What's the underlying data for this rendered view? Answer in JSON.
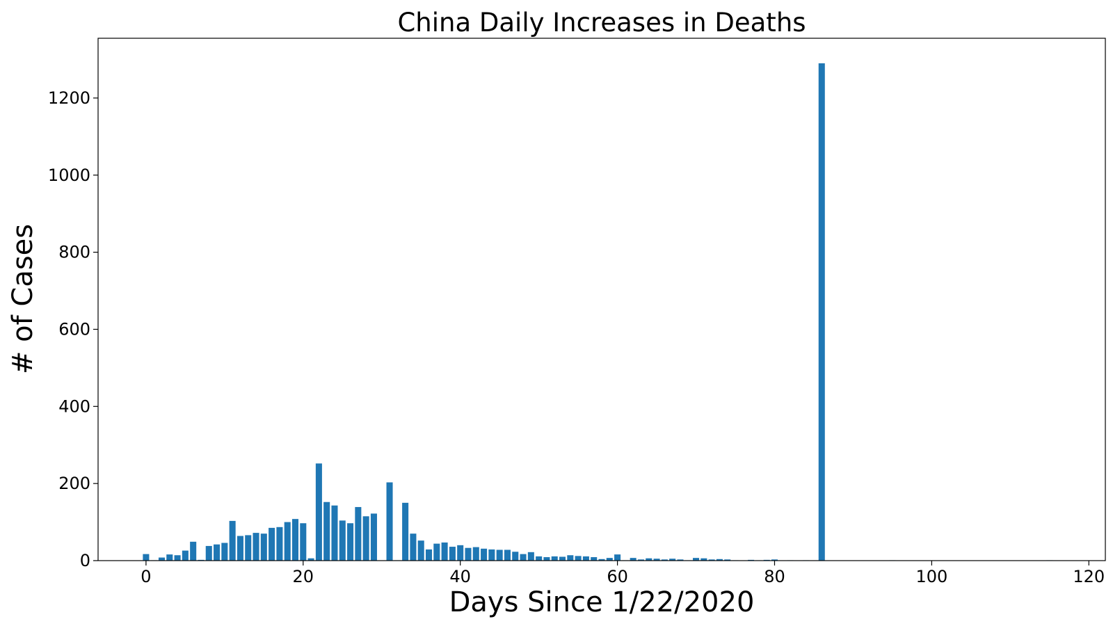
{
  "chart_data": {
    "type": "bar",
    "title": "China Daily Increases in Deaths",
    "xlabel": "Days Since 1/22/2020",
    "ylabel": "# of Cases",
    "xlim": [
      -6.1,
      122.1
    ],
    "ylim": [
      0,
      1355
    ],
    "xticks": [
      0,
      20,
      40,
      60,
      80,
      100,
      120
    ],
    "yticks": [
      0,
      200,
      400,
      600,
      800,
      1000,
      1200
    ],
    "grid": false,
    "legend": "none",
    "bar_color": "#1f77b4",
    "x": [
      0,
      1,
      2,
      3,
      4,
      5,
      6,
      7,
      8,
      9,
      10,
      11,
      12,
      13,
      14,
      15,
      16,
      17,
      18,
      19,
      20,
      21,
      22,
      23,
      24,
      25,
      26,
      27,
      28,
      29,
      30,
      31,
      32,
      33,
      34,
      35,
      36,
      37,
      38,
      39,
      40,
      41,
      42,
      43,
      44,
      45,
      46,
      47,
      48,
      49,
      50,
      51,
      52,
      53,
      54,
      55,
      56,
      57,
      58,
      59,
      60,
      61,
      62,
      63,
      64,
      65,
      66,
      67,
      68,
      69,
      70,
      71,
      72,
      73,
      74,
      75,
      76,
      77,
      78,
      79,
      80,
      81,
      82,
      83,
      84,
      85,
      86,
      87,
      88,
      89,
      90,
      91,
      92,
      93,
      94,
      95,
      96,
      97,
      98,
      99,
      100,
      101,
      102,
      103,
      104,
      105,
      106,
      107,
      108,
      109,
      110,
      111,
      112,
      113,
      114,
      115,
      116,
      117,
      118,
      119
    ],
    "values": [
      17,
      1,
      8,
      16,
      14,
      26,
      49,
      2,
      38,
      42,
      46,
      103,
      64,
      66,
      72,
      70,
      85,
      87,
      100,
      108,
      97,
      6,
      252,
      152,
      143,
      104,
      97,
      139,
      115,
      122,
      0,
      203,
      1,
      150,
      70,
      52,
      29,
      44,
      47,
      36,
      40,
      33,
      35,
      31,
      29,
      28,
      28,
      23,
      17,
      22,
      11,
      9,
      11,
      10,
      14,
      12,
      11,
      9,
      4,
      7,
      16,
      1,
      7,
      3,
      6,
      5,
      3,
      5,
      3,
      1,
      7,
      6,
      3,
      4,
      3,
      1,
      0,
      2,
      1,
      2,
      3,
      0,
      1,
      0,
      1,
      0,
      1290,
      0,
      0,
      0,
      0,
      0,
      0,
      0,
      0,
      1,
      0,
      0,
      0,
      0,
      0,
      0,
      0,
      0,
      0,
      0,
      0,
      0,
      0,
      0,
      0,
      0,
      0,
      0,
      0,
      1,
      0,
      0,
      0,
      0
    ]
  }
}
